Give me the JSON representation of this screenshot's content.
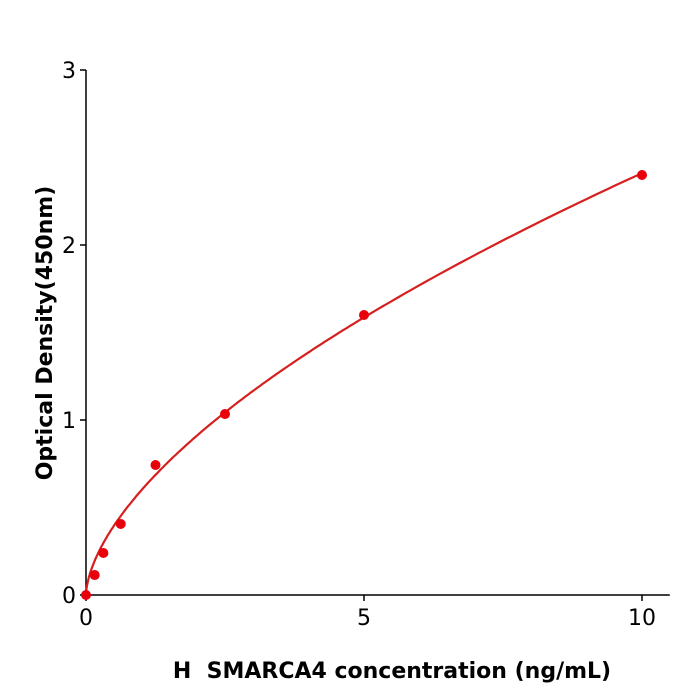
{
  "chart_data": {
    "type": "scatter",
    "title": "",
    "xlabel": "H  SMARCA4 concentration (ng/mL)",
    "ylabel": "Optical Density(450nm)",
    "xlim": [
      0,
      10.5
    ],
    "ylim": [
      0,
      3
    ],
    "xticks": [
      0,
      5,
      10
    ],
    "yticks": [
      0,
      1,
      2,
      3
    ],
    "grid": false,
    "colors": {
      "points": "#e8000b",
      "curve": "#d62020",
      "axis": "#000000"
    },
    "points": {
      "x": [
        0,
        0.156,
        0.3125,
        0.625,
        1.25,
        2.5,
        5,
        10
      ],
      "y": [
        0.0,
        0.114,
        0.24,
        0.406,
        0.743,
        1.034,
        1.6,
        2.4
      ]
    },
    "fit_curve": "smooth standard curve through points"
  }
}
